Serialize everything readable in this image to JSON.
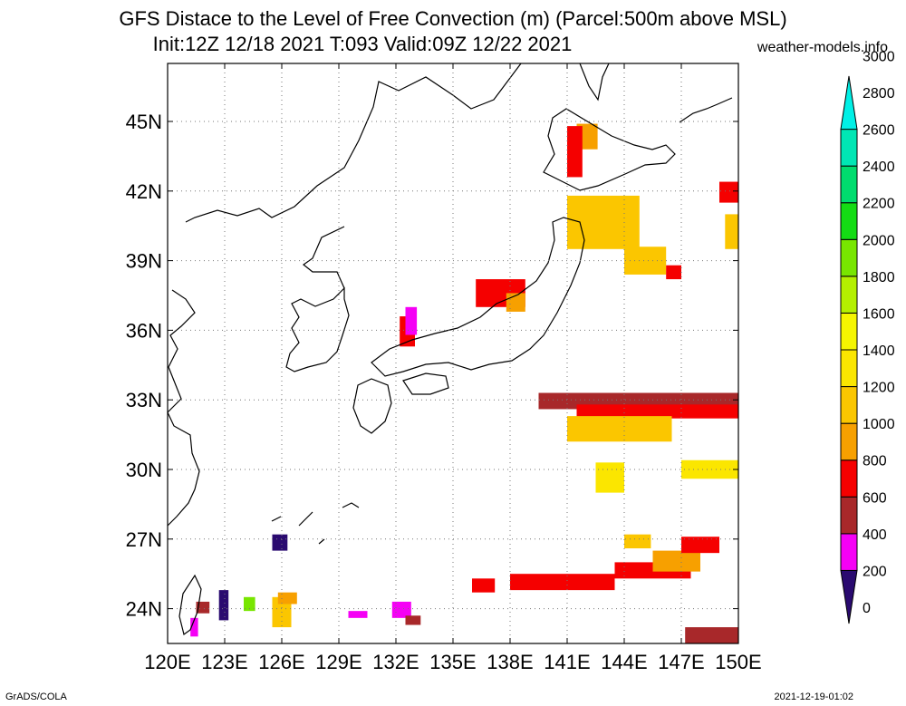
{
  "title_line1": "GFS Distace to the Level of Free Convection (m) (Parcel:500m above MSL)",
  "title_line2": "Init:12Z 12/18 2021 T:093 Valid:09Z 12/22 2021",
  "site": "weather-models.info",
  "footer_left": "GrADS/COLA",
  "footer_right": "2021-12-19-01:02",
  "map": {
    "lon_range": [
      120,
      150
    ],
    "lat_range": [
      22.5,
      47.5
    ],
    "lon_ticks": [
      {
        "value": 120,
        "label": "120E"
      },
      {
        "value": 123,
        "label": "123E"
      },
      {
        "value": 126,
        "label": "126E"
      },
      {
        "value": 129,
        "label": "129E"
      },
      {
        "value": 132,
        "label": "132E"
      },
      {
        "value": 135,
        "label": "135E"
      },
      {
        "value": 138,
        "label": "138E"
      },
      {
        "value": 141,
        "label": "141E"
      },
      {
        "value": 144,
        "label": "144E"
      },
      {
        "value": 147,
        "label": "147E"
      },
      {
        "value": 150,
        "label": "150E"
      }
    ],
    "lat_ticks": [
      {
        "value": 24,
        "label": "24N"
      },
      {
        "value": 27,
        "label": "27N"
      },
      {
        "value": 30,
        "label": "30N"
      },
      {
        "value": 33,
        "label": "33N"
      },
      {
        "value": 36,
        "label": "36N"
      },
      {
        "value": 39,
        "label": "39N"
      },
      {
        "value": 42,
        "label": "42N"
      },
      {
        "value": 45,
        "label": "45N"
      }
    ],
    "fields": [
      {
        "lon": [
          136.2,
          138.8
        ],
        "lat": [
          37.0,
          38.2
        ],
        "level": 3
      },
      {
        "lon": [
          137.8,
          138.8
        ],
        "lat": [
          36.8,
          37.6
        ],
        "level": 4
      },
      {
        "lon": [
          132.2,
          133.0
        ],
        "lat": [
          35.3,
          36.6
        ],
        "level": 3
      },
      {
        "lon": [
          132.5,
          133.1
        ],
        "lat": [
          35.8,
          37.0
        ],
        "level": 1
      },
      {
        "lon": [
          141.5,
          142.6
        ],
        "lat": [
          43.8,
          44.9
        ],
        "level": 4
      },
      {
        "lon": [
          141.0,
          141.8
        ],
        "lat": [
          42.6,
          44.8
        ],
        "level": 3
      },
      {
        "lon": [
          141.0,
          144.8
        ],
        "lat": [
          39.5,
          41.8
        ],
        "level": 5
      },
      {
        "lon": [
          144.0,
          146.2
        ],
        "lat": [
          38.4,
          39.6
        ],
        "level": 5
      },
      {
        "lon": [
          146.2,
          147.0
        ],
        "lat": [
          38.2,
          38.8
        ],
        "level": 3
      },
      {
        "lon": [
          149.0,
          150.0
        ],
        "lat": [
          41.5,
          42.4
        ],
        "level": 3
      },
      {
        "lon": [
          149.3,
          150.0
        ],
        "lat": [
          39.5,
          41.0
        ],
        "level": 5
      },
      {
        "lon": [
          139.5,
          150.0
        ],
        "lat": [
          32.6,
          33.3
        ],
        "level": 2
      },
      {
        "lon": [
          141.5,
          150.0
        ],
        "lat": [
          32.2,
          32.8
        ],
        "level": 3
      },
      {
        "lon": [
          141.0,
          146.5
        ],
        "lat": [
          31.2,
          32.3
        ],
        "level": 5
      },
      {
        "lon": [
          147.0,
          150.0
        ],
        "lat": [
          29.6,
          30.4
        ],
        "level": 6
      },
      {
        "lon": [
          142.5,
          144.0
        ],
        "lat": [
          29.0,
          30.3
        ],
        "level": 6
      },
      {
        "lon": [
          144.0,
          145.4
        ],
        "lat": [
          26.6,
          27.2
        ],
        "level": 5
      },
      {
        "lon": [
          138.0,
          143.5
        ],
        "lat": [
          24.8,
          25.5
        ],
        "level": 3
      },
      {
        "lon": [
          136.0,
          137.2
        ],
        "lat": [
          24.7,
          25.3
        ],
        "level": 3
      },
      {
        "lon": [
          143.5,
          147.5
        ],
        "lat": [
          25.3,
          26.0
        ],
        "level": 3
      },
      {
        "lon": [
          145.5,
          148.0
        ],
        "lat": [
          25.6,
          26.5
        ],
        "level": 4
      },
      {
        "lon": [
          147.0,
          149.0
        ],
        "lat": [
          26.4,
          27.1
        ],
        "level": 3
      },
      {
        "lon": [
          147.2,
          150.0
        ],
        "lat": [
          22.5,
          23.2
        ],
        "level": 2
      },
      {
        "lon": [
          125.5,
          126.5
        ],
        "lat": [
          23.2,
          24.5
        ],
        "level": 5
      },
      {
        "lon": [
          125.8,
          126.8
        ],
        "lat": [
          24.2,
          24.7
        ],
        "level": 4
      },
      {
        "lon": [
          124.0,
          124.6
        ],
        "lat": [
          23.9,
          24.5
        ],
        "level": 9
      },
      {
        "lon": [
          122.7,
          123.2
        ],
        "lat": [
          23.5,
          24.8
        ],
        "level": 0
      },
      {
        "lon": [
          131.8,
          132.8
        ],
        "lat": [
          23.6,
          24.3
        ],
        "level": 1
      },
      {
        "lon": [
          132.5,
          133.3
        ],
        "lat": [
          23.3,
          23.7
        ],
        "level": 2
      },
      {
        "lon": [
          129.5,
          130.5
        ],
        "lat": [
          23.6,
          23.9
        ],
        "level": 1
      },
      {
        "lon": [
          125.5,
          126.3
        ],
        "lat": [
          26.5,
          27.2
        ],
        "level": 0
      },
      {
        "lon": [
          121.5,
          122.2
        ],
        "lat": [
          23.8,
          24.3
        ],
        "level": 2
      },
      {
        "lon": [
          121.2,
          121.6
        ],
        "lat": [
          22.8,
          23.6
        ],
        "level": 1
      }
    ]
  },
  "colorbar": {
    "colors": [
      "#2a0a70",
      "#f500f5",
      "#a8282a",
      "#f50000",
      "#f7a000",
      "#fbc600",
      "#fbe600",
      "#f5f500",
      "#b4f000",
      "#78e600",
      "#14dc14",
      "#00dc6e",
      "#00e6b4",
      "#00f0e6"
    ],
    "labels": [
      "0",
      "200",
      "400",
      "600",
      "800",
      "1000",
      "1200",
      "1400",
      "1600",
      "1800",
      "2000",
      "2200",
      "2400",
      "2600",
      "2800",
      "3000"
    ]
  }
}
